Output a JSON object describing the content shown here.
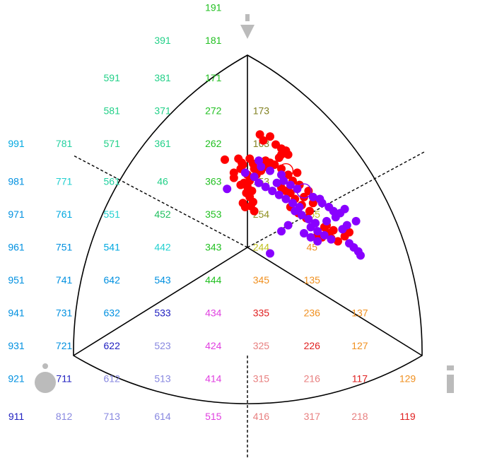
{
  "chart_data": {
    "type": "scatter",
    "title": "",
    "xlabel": "",
    "ylabel": "",
    "grid_labels": [
      {
        "t": "191",
        "c": "#22c022",
        "col": 6.6,
        "row": -0.1
      },
      {
        "t": "391",
        "c": "#22d088",
        "col": 4.9,
        "row": 0.6
      },
      {
        "t": "181",
        "c": "#22c022",
        "col": 6.6,
        "row": 0.6
      },
      {
        "t": "591",
        "c": "#22d088",
        "col": 3.2,
        "row": 1.4
      },
      {
        "t": "381",
        "c": "#22d088",
        "col": 4.9,
        "row": 1.4
      },
      {
        "t": "171",
        "c": "#22c022",
        "col": 6.6,
        "row": 1.4
      },
      {
        "t": "581",
        "c": "#22d088",
        "col": 3.2,
        "row": 2.1
      },
      {
        "t": "371",
        "c": "#22d088",
        "col": 4.9,
        "row": 2.1
      },
      {
        "t": "272",
        "c": "#22c022",
        "col": 6.6,
        "row": 2.1
      },
      {
        "t": "173",
        "c": "#808020",
        "col": 8.2,
        "row": 2.1
      },
      {
        "t": "991",
        "c": "#00a8e0",
        "col": 0.0,
        "row": 2.8
      },
      {
        "t": "781",
        "c": "#22d0a0",
        "col": 1.6,
        "row": 2.8
      },
      {
        "t": "571",
        "c": "#22d088",
        "col": 3.2,
        "row": 2.8
      },
      {
        "t": "361",
        "c": "#22d088",
        "col": 4.9,
        "row": 2.8
      },
      {
        "t": "262",
        "c": "#22c022",
        "col": 6.6,
        "row": 2.8
      },
      {
        "t": "163",
        "c": "#808020",
        "col": 8.2,
        "row": 2.8
      },
      {
        "t": "981",
        "c": "#0090e0",
        "col": 0.0,
        "row": 3.6
      },
      {
        "t": "771",
        "c": "#22d0d0",
        "col": 1.6,
        "row": 3.6
      },
      {
        "t": "561",
        "c": "#22d0a0",
        "col": 3.2,
        "row": 3.6
      },
      {
        "t": "46",
        "c": "#22d088",
        "col": 4.9,
        "row": 3.6
      },
      {
        "t": "363",
        "c": "#22c022",
        "col": 6.6,
        "row": 3.6
      },
      {
        "t": "153",
        "c": "#909020",
        "col": 8.2,
        "row": 3.6
      },
      {
        "t": "971",
        "c": "#0090e0",
        "col": 0.0,
        "row": 4.3
      },
      {
        "t": "761",
        "c": "#00a8e0",
        "col": 1.6,
        "row": 4.3
      },
      {
        "t": "551",
        "c": "#22d0d0",
        "col": 3.2,
        "row": 4.3
      },
      {
        "t": "452",
        "c": "#22c060",
        "col": 4.9,
        "row": 4.3
      },
      {
        "t": "353",
        "c": "#22c022",
        "col": 6.6,
        "row": 4.3
      },
      {
        "t": "254",
        "c": "#909020",
        "col": 8.2,
        "row": 4.3
      },
      {
        "t": "155",
        "c": "#c0c020",
        "col": 9.9,
        "row": 4.3
      },
      {
        "t": "961",
        "c": "#0090e0",
        "col": 0.0,
        "row": 5.0
      },
      {
        "t": "751",
        "c": "#0090e0",
        "col": 1.6,
        "row": 5.0
      },
      {
        "t": "541",
        "c": "#00a8e0",
        "col": 3.2,
        "row": 5.0
      },
      {
        "t": "442",
        "c": "#22d0d0",
        "col": 4.9,
        "row": 5.0
      },
      {
        "t": "343",
        "c": "#22c022",
        "col": 6.6,
        "row": 5.0
      },
      {
        "t": "244",
        "c": "#c0c020",
        "col": 8.2,
        "row": 5.0
      },
      {
        "t": "45",
        "c": "#f09020",
        "col": 9.9,
        "row": 5.0
      },
      {
        "t": "951",
        "c": "#0090e0",
        "col": 0.0,
        "row": 5.7
      },
      {
        "t": "741",
        "c": "#0090e0",
        "col": 1.6,
        "row": 5.7
      },
      {
        "t": "642",
        "c": "#0090e0",
        "col": 3.2,
        "row": 5.7
      },
      {
        "t": "543",
        "c": "#0090e0",
        "col": 4.9,
        "row": 5.7
      },
      {
        "t": "444",
        "c": "#22c022",
        "col": 6.6,
        "row": 5.7
      },
      {
        "t": "345",
        "c": "#f09020",
        "col": 8.2,
        "row": 5.7
      },
      {
        "t": "135",
        "c": "#f09020",
        "col": 9.9,
        "row": 5.7
      },
      {
        "t": "941",
        "c": "#0090e0",
        "col": 0.0,
        "row": 6.4
      },
      {
        "t": "731",
        "c": "#0090e0",
        "col": 1.6,
        "row": 6.4
      },
      {
        "t": "632",
        "c": "#0090e0",
        "col": 3.2,
        "row": 6.4
      },
      {
        "t": "533",
        "c": "#2020c0",
        "col": 4.9,
        "row": 6.4
      },
      {
        "t": "434",
        "c": "#e040e0",
        "col": 6.6,
        "row": 6.4
      },
      {
        "t": "335",
        "c": "#e02020",
        "col": 8.2,
        "row": 6.4
      },
      {
        "t": "236",
        "c": "#f09020",
        "col": 9.9,
        "row": 6.4
      },
      {
        "t": "137",
        "c": "#f09020",
        "col": 11.5,
        "row": 6.4
      },
      {
        "t": "931",
        "c": "#0090e0",
        "col": 0.0,
        "row": 7.1
      },
      {
        "t": "721",
        "c": "#0090e0",
        "col": 1.6,
        "row": 7.1
      },
      {
        "t": "622",
        "c": "#2020c0",
        "col": 3.2,
        "row": 7.1
      },
      {
        "t": "523",
        "c": "#8888e0",
        "col": 4.9,
        "row": 7.1
      },
      {
        "t": "424",
        "c": "#e040e0",
        "col": 6.6,
        "row": 7.1
      },
      {
        "t": "325",
        "c": "#e88080",
        "col": 8.2,
        "row": 7.1
      },
      {
        "t": "226",
        "c": "#e02020",
        "col": 9.9,
        "row": 7.1
      },
      {
        "t": "127",
        "c": "#f09020",
        "col": 11.5,
        "row": 7.1
      },
      {
        "t": "921",
        "c": "#0090e0",
        "col": 0.0,
        "row": 7.8
      },
      {
        "t": "711",
        "c": "#2020c0",
        "col": 1.6,
        "row": 7.8
      },
      {
        "t": "612",
        "c": "#8888e0",
        "col": 3.2,
        "row": 7.8
      },
      {
        "t": "513",
        "c": "#8888e0",
        "col": 4.9,
        "row": 7.8
      },
      {
        "t": "414",
        "c": "#e040e0",
        "col": 6.6,
        "row": 7.8
      },
      {
        "t": "315",
        "c": "#e88080",
        "col": 8.2,
        "row": 7.8
      },
      {
        "t": "216",
        "c": "#e88080",
        "col": 9.9,
        "row": 7.8
      },
      {
        "t": "117",
        "c": "#e02020",
        "col": 11.5,
        "row": 7.8
      },
      {
        "t": "129",
        "c": "#f09020",
        "col": 13.1,
        "row": 7.8
      },
      {
        "t": "911",
        "c": "#2020c0",
        "col": 0.0,
        "row": 8.6
      },
      {
        "t": "812",
        "c": "#8888e0",
        "col": 1.6,
        "row": 8.6
      },
      {
        "t": "713",
        "c": "#8888e0",
        "col": 3.2,
        "row": 8.6
      },
      {
        "t": "614",
        "c": "#8888e0",
        "col": 4.9,
        "row": 8.6
      },
      {
        "t": "515",
        "c": "#e040e0",
        "col": 6.6,
        "row": 8.6
      },
      {
        "t": "416",
        "c": "#e88080",
        "col": 8.2,
        "row": 8.6
      },
      {
        "t": "317",
        "c": "#e88080",
        "col": 9.9,
        "row": 8.6
      },
      {
        "t": "218",
        "c": "#e88080",
        "col": 11.5,
        "row": 8.6
      },
      {
        "t": "119",
        "c": "#e02020",
        "col": 13.1,
        "row": 8.6
      }
    ],
    "series": [
      {
        "color": "#ff0000",
        "mean": [
          0.34,
          0.62
        ],
        "points": [
          [
            0.14,
            0.92
          ],
          [
            0.11,
            0.98
          ],
          [
            0.2,
            0.96
          ],
          [
            0.25,
            0.88
          ],
          [
            0.3,
            0.84
          ],
          [
            0.3,
            0.78
          ],
          [
            0.34,
            0.82
          ],
          [
            0.36,
            0.78
          ],
          [
            0.28,
            0.75
          ],
          [
            0.16,
            0.72
          ],
          [
            -0.2,
            0.73
          ],
          [
            -0.05,
            0.7
          ],
          [
            -0.12,
            0.6
          ],
          [
            -0.12,
            0.55
          ],
          [
            -0.06,
            0.64
          ],
          [
            -0.04,
            0.68
          ],
          [
            0.02,
            0.74
          ],
          [
            0.05,
            0.69
          ],
          [
            0.06,
            0.64
          ],
          [
            0.0,
            0.58
          ],
          [
            0.02,
            0.52
          ],
          [
            -0.03,
            0.5
          ],
          [
            -0.06,
            0.48
          ],
          [
            0.0,
            0.46
          ],
          [
            0.04,
            0.42
          ],
          [
            0.02,
            0.36
          ],
          [
            0.05,
            0.31
          ],
          [
            0.03,
            0.27
          ],
          [
            0.06,
            0.22
          ],
          [
            -0.02,
            0.26
          ],
          [
            -0.04,
            0.3
          ],
          [
            -0.01,
            0.4
          ],
          [
            0.3,
            0.45
          ],
          [
            0.34,
            0.42
          ],
          [
            0.38,
            0.4
          ],
          [
            0.42,
            0.34
          ],
          [
            0.48,
            0.28
          ],
          [
            0.55,
            0.22
          ],
          [
            0.38,
            0.26
          ],
          [
            0.45,
            0.2
          ],
          [
            0.52,
            0.15
          ],
          [
            0.6,
            0.1
          ],
          [
            0.68,
            0.06
          ],
          [
            0.72,
            0.0
          ],
          [
            0.62,
            -0.02
          ],
          [
            0.66,
            -0.04
          ],
          [
            0.74,
            -0.05
          ],
          [
            0.8,
            -0.08
          ],
          [
            0.9,
            0.01
          ],
          [
            0.86,
            -0.03
          ],
          [
            0.76,
            0.03
          ],
          [
            0.7,
            0.08
          ],
          [
            0.58,
            0.3
          ],
          [
            0.5,
            0.36
          ],
          [
            0.54,
            0.42
          ],
          [
            0.46,
            0.48
          ],
          [
            0.4,
            0.52
          ],
          [
            0.36,
            0.58
          ],
          [
            0.44,
            0.6
          ],
          [
            0.3,
            0.64
          ],
          [
            0.24,
            0.68
          ],
          [
            0.2,
            0.7
          ],
          [
            0.16,
            0.66
          ],
          [
            0.12,
            0.62
          ],
          [
            0.08,
            0.58
          ],
          [
            -0.08,
            0.74
          ]
        ]
      },
      {
        "color": "#8800ff",
        "mean": [
          0.5,
          0.42
        ],
        "points": [
          [
            -0.18,
            0.44
          ],
          [
            0.1,
            0.72
          ],
          [
            0.12,
            0.66
          ],
          [
            -0.02,
            0.6
          ],
          [
            0.2,
            0.62
          ],
          [
            0.06,
            0.56
          ],
          [
            0.3,
            0.58
          ],
          [
            0.32,
            0.52
          ],
          [
            0.1,
            0.5
          ],
          [
            0.16,
            0.46
          ],
          [
            0.22,
            0.42
          ],
          [
            0.28,
            0.38
          ],
          [
            0.34,
            0.34
          ],
          [
            0.4,
            0.3
          ],
          [
            0.46,
            0.26
          ],
          [
            0.42,
            0.22
          ],
          [
            0.48,
            0.18
          ],
          [
            0.54,
            0.14
          ],
          [
            0.6,
            0.1
          ],
          [
            0.56,
            0.06
          ],
          [
            0.62,
            0.02
          ],
          [
            0.68,
            -0.02
          ],
          [
            0.74,
            -0.06
          ],
          [
            0.7,
            0.12
          ],
          [
            0.78,
            0.16
          ],
          [
            0.82,
            0.2
          ],
          [
            0.86,
            0.24
          ],
          [
            0.9,
            -0.1
          ],
          [
            0.94,
            -0.14
          ],
          [
            0.98,
            -0.18
          ],
          [
            0.36,
            0.08
          ],
          [
            0.3,
            0.02
          ],
          [
            0.5,
            0.0
          ],
          [
            0.56,
            -0.04
          ],
          [
            0.62,
            -0.08
          ],
          [
            1.0,
            -0.22
          ],
          [
            0.2,
            -0.2
          ],
          [
            0.66,
            0.3
          ],
          [
            0.72,
            0.26
          ],
          [
            0.76,
            0.22
          ],
          [
            0.44,
            0.44
          ],
          [
            0.38,
            0.48
          ],
          [
            0.58,
            0.36
          ],
          [
            0.64,
            0.34
          ],
          [
            0.84,
            0.04
          ],
          [
            0.88,
            0.08
          ],
          [
            0.96,
            0.12
          ],
          [
            0.26,
            0.5
          ]
        ]
      }
    ]
  }
}
